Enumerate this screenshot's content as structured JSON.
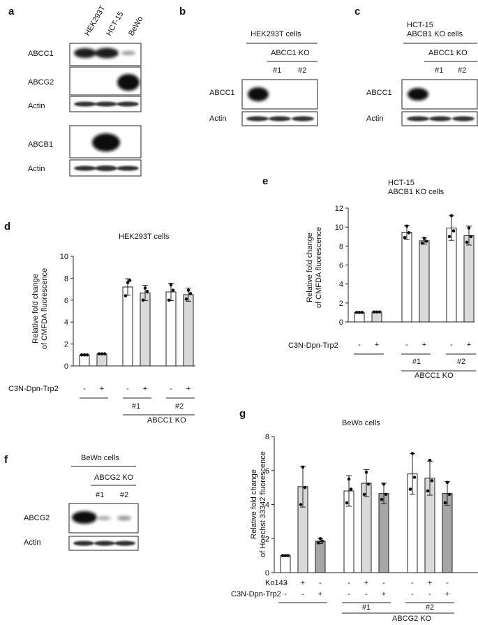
{
  "panels": {
    "a": {
      "letter": "a",
      "lanes": [
        "HEK293T",
        "HCT-15",
        "BeWo"
      ],
      "rows": [
        "ABCC1",
        "ABCG2",
        "Actin",
        "ABCB1",
        "Actin"
      ]
    },
    "b": {
      "letter": "b",
      "header": "HEK293T cells",
      "ko_label": "ABCC1 KO",
      "clones": [
        "#1",
        "#2"
      ],
      "rows": [
        "ABCC1",
        "Actin"
      ]
    },
    "c": {
      "letter": "c",
      "header_line1": "HCT-15",
      "header_line2": "ABCB1 KO cells",
      "ko_label": "ABCC1 KO",
      "clones": [
        "#1",
        "#2"
      ],
      "rows": [
        "ABCC1",
        "Actin"
      ]
    },
    "f": {
      "letter": "f",
      "header": "BeWo cells",
      "ko_label": "ABCG2 KO",
      "clones": [
        "#1",
        "#2"
      ],
      "rows": [
        "ABCG2",
        "Actin"
      ]
    },
    "d": {
      "letter": "d"
    },
    "e": {
      "letter": "e"
    },
    "g": {
      "letter": "g"
    }
  },
  "chart_data": [
    {
      "id": "d",
      "type": "bar",
      "title": "HEK293T cells",
      "ylabel_line1": "Relative fold change",
      "ylabel_line2": "of CMFDA fluorescence",
      "ylim": [
        0,
        10
      ],
      "yticks": [
        0,
        2,
        4,
        6,
        8,
        10
      ],
      "treatment_label": "C3N-Dpn-Trp2",
      "treatment_signs": [
        "-",
        "+",
        "-",
        "+",
        "-",
        "+"
      ],
      "group_labels": [
        "#1",
        "#2"
      ],
      "ko_label": "ABCC1 KO",
      "values": [
        1.0,
        1.1,
        7.2,
        6.65,
        6.75,
        6.5
      ],
      "errors": [
        0.05,
        0.05,
        0.75,
        0.7,
        0.8,
        0.6
      ],
      "fills": [
        "#ffffff",
        "#d9d9d9",
        "#ffffff",
        "#d9d9d9",
        "#ffffff",
        "#d9d9d9"
      ],
      "points": [
        [
          1.0,
          1.0,
          1.0
        ],
        [
          1.1,
          1.1,
          1.1
        ],
        [
          7.6,
          7.8,
          6.4
        ],
        [
          7.1,
          6.8,
          6.0
        ],
        [
          7.4,
          6.9,
          6.0
        ],
        [
          6.9,
          6.6,
          6.1
        ]
      ]
    },
    {
      "id": "e",
      "type": "bar",
      "title_line1": "HCT-15",
      "title_line2": "ABCB1 KO cells",
      "ylabel_line1": "Relative fold change",
      "ylabel_line2": "of CMFDA fluorescence",
      "ylim": [
        0,
        12
      ],
      "yticks": [
        0,
        2,
        4,
        6,
        8,
        10,
        12
      ],
      "treatment_label": "C3N-Dpn-Trp2",
      "treatment_signs": [
        "-",
        "+",
        "-",
        "+",
        "-",
        "+"
      ],
      "group_labels": [
        "#1",
        "#2"
      ],
      "ko_label": "ABCC1 KO",
      "values": [
        1.0,
        1.05,
        9.45,
        8.55,
        9.9,
        9.1
      ],
      "errors": [
        0.05,
        0.05,
        0.75,
        0.35,
        1.3,
        1.0
      ],
      "fills": [
        "#ffffff",
        "#d9d9d9",
        "#ffffff",
        "#d9d9d9",
        "#ffffff",
        "#d9d9d9"
      ],
      "points": [
        [
          1.0,
          1.0,
          1.0
        ],
        [
          1.05,
          1.05,
          1.05
        ],
        [
          10.1,
          9.4,
          8.9
        ],
        [
          8.8,
          8.5,
          8.3
        ],
        [
          11.2,
          9.6,
          9.0
        ],
        [
          9.9,
          9.0,
          8.4
        ]
      ]
    },
    {
      "id": "g",
      "type": "bar",
      "title": "BeWo cells",
      "ylabel_line1": "Relative fold change",
      "ylabel_line2": "of Hoechst 33342 fluorescence",
      "ylim": [
        0,
        8
      ],
      "yticks": [
        0,
        2,
        4,
        6,
        8
      ],
      "row1_label": "Ko143",
      "row1_signs": [
        "-",
        "+",
        "-",
        "-",
        "+",
        "-",
        "-",
        "+",
        "-"
      ],
      "row2_label": "C3N-Dpn-Trp2",
      "row2_signs": [
        "-",
        "-",
        "+",
        "-",
        "-",
        "+",
        "-",
        "-",
        "+"
      ],
      "group_labels": [
        "#1",
        "#2"
      ],
      "ko_label": "ABCG2 KO",
      "values": [
        1.0,
        5.05,
        1.85,
        4.8,
        5.25,
        4.65,
        5.8,
        5.55,
        4.65
      ],
      "errors": [
        0.05,
        1.2,
        0.15,
        0.9,
        0.8,
        0.6,
        1.2,
        1.0,
        0.7
      ],
      "fills": [
        "#ffffff",
        "#d9d9d9",
        "#a6a6a6",
        "#ffffff",
        "#d9d9d9",
        "#a6a6a6",
        "#ffffff",
        "#d9d9d9",
        "#a6a6a6"
      ],
      "points": [
        [
          1.0,
          1.0,
          1.0
        ],
        [
          6.2,
          5.0,
          4.0
        ],
        [
          2.0,
          1.85,
          1.75
        ],
        [
          5.5,
          4.9,
          4.1
        ],
        [
          5.9,
          5.2,
          4.6
        ],
        [
          5.2,
          4.6,
          4.3
        ],
        [
          7.0,
          5.6,
          4.9
        ],
        [
          6.6,
          5.4,
          4.8
        ],
        [
          5.3,
          4.6,
          4.1
        ]
      ]
    }
  ]
}
